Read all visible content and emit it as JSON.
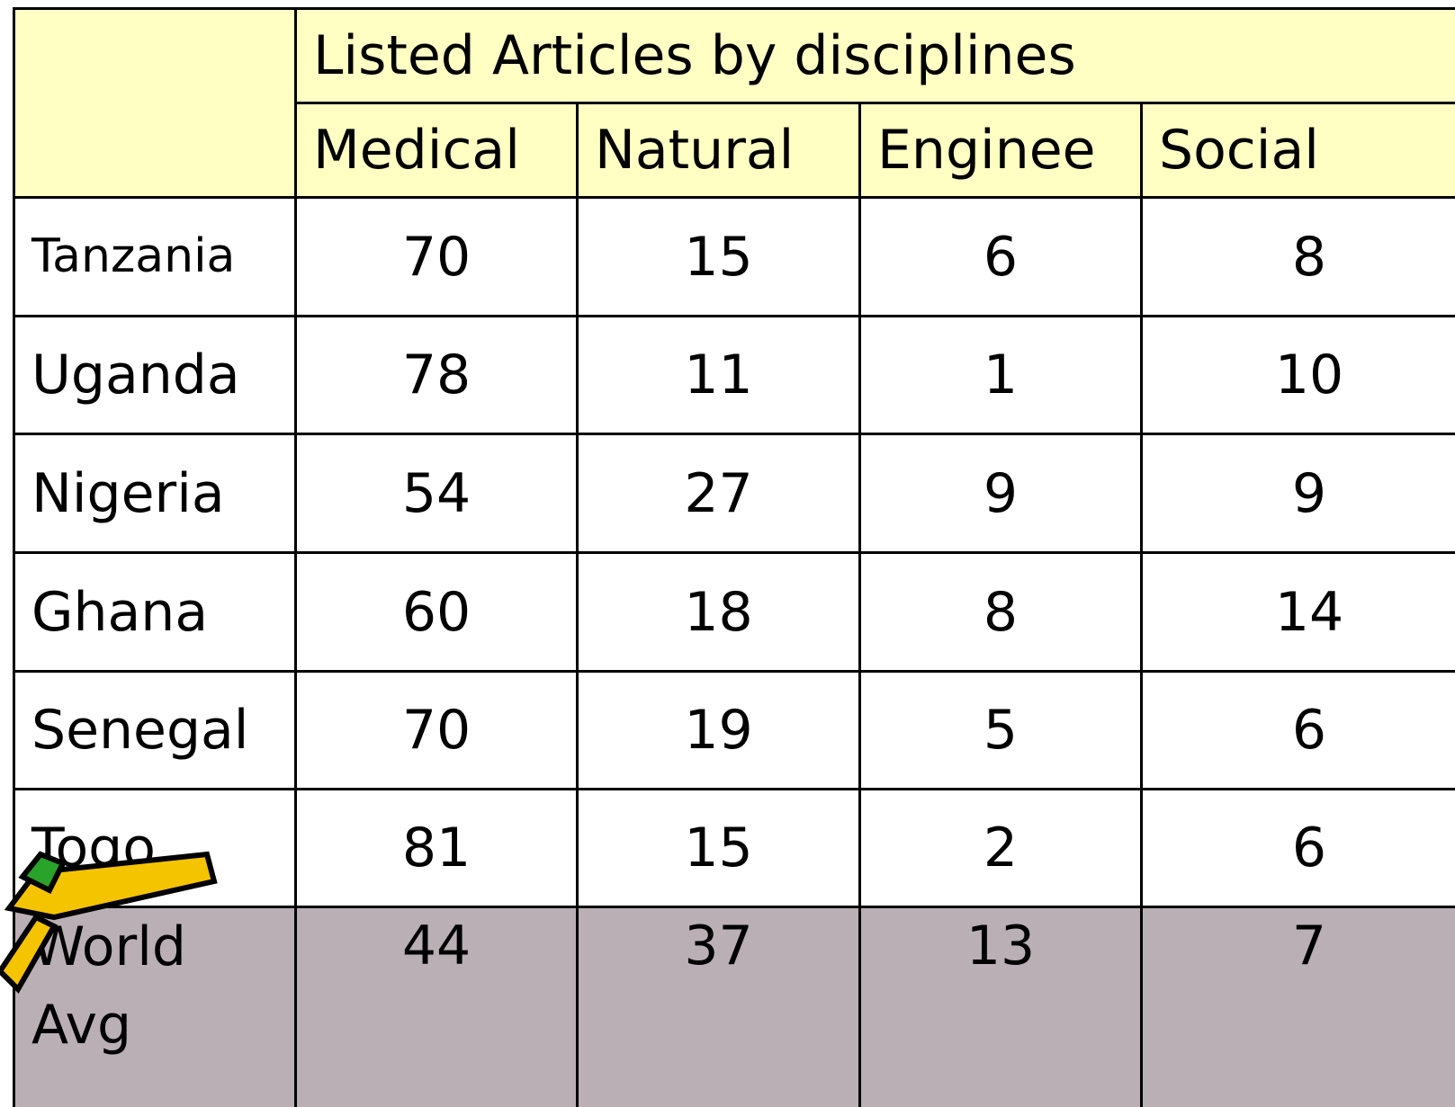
{
  "table": {
    "group_header": "Listed Articles by disciplines",
    "columns": [
      "Medical",
      "Natural",
      "Enginee",
      "Social"
    ],
    "rows": [
      {
        "label": "Tanzania",
        "values": [
          70,
          15,
          6,
          8
        ]
      },
      {
        "label": "Uganda",
        "values": [
          78,
          11,
          1,
          10
        ]
      },
      {
        "label": "Nigeria",
        "values": [
          54,
          27,
          9,
          9
        ]
      },
      {
        "label": "Ghana",
        "values": [
          60,
          18,
          8,
          14
        ]
      },
      {
        "label": "Senegal",
        "values": [
          70,
          19,
          5,
          6
        ]
      },
      {
        "label": "Togo",
        "values": [
          81,
          15,
          2,
          6
        ]
      },
      {
        "label": "World Avg",
        "values": [
          44,
          37,
          13,
          7
        ]
      }
    ]
  }
}
